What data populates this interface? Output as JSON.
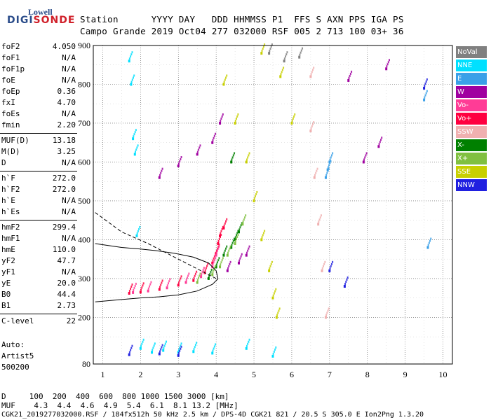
{
  "logo": {
    "top": "Lowell",
    "main_left": "DIGI",
    "main_right": "SONDE"
  },
  "header": {
    "row1": "Station      YYYY DAY   DDD HHMMSS P1  FFS S AXN PPS IGA PS",
    "row2": "Campo Grande 2019 Oct04 277 032000 RSF 005 2 713 100 03+ 36"
  },
  "params_group1": [
    {
      "label": "foF2",
      "value": "4.050"
    },
    {
      "label": "foF1",
      "value": "N/A"
    },
    {
      "label": "foF1p",
      "value": "N/A"
    },
    {
      "label": "foE",
      "value": "N/A"
    },
    {
      "label": "foEp",
      "value": "0.36"
    },
    {
      "label": "fxI",
      "value": "4.70"
    },
    {
      "label": "foEs",
      "value": "N/A"
    },
    {
      "label": "fmin",
      "value": "2.20"
    }
  ],
  "params_group2": [
    {
      "label": "MUF(D)",
      "value": "13.18"
    },
    {
      "label": "M(D)",
      "value": "3.25"
    },
    {
      "label": "D",
      "value": "N/A"
    }
  ],
  "params_group3": [
    {
      "label": "h`F",
      "value": "272.0"
    },
    {
      "label": "h`F2",
      "value": "272.0"
    },
    {
      "label": "h`E",
      "value": "N/A"
    },
    {
      "label": "h`Es",
      "value": "N/A"
    }
  ],
  "params_group4": [
    {
      "label": "hmF2",
      "value": "299.4"
    },
    {
      "label": "hmF1",
      "value": "N/A"
    },
    {
      "label": "hmE",
      "value": "110.0"
    },
    {
      "label": "yF2",
      "value": "47.7"
    },
    {
      "label": "yF1",
      "value": "N/A"
    },
    {
      "label": "yE",
      "value": "20.0"
    },
    {
      "label": "B0",
      "value": "44.4"
    },
    {
      "label": "B1",
      "value": "2.73"
    }
  ],
  "params_group5": [
    {
      "label": "C-level",
      "value": "22"
    }
  ],
  "auto": [
    "Auto:",
    "Artist5",
    "500200"
  ],
  "legend": [
    {
      "label": "NoVal",
      "color": "#808080"
    },
    {
      "label": "NNE",
      "color": "#00e0ff"
    },
    {
      "label": "E",
      "color": "#3aa0e8"
    },
    {
      "label": "W",
      "color": "#a000a0"
    },
    {
      "label": "Vo-",
      "color": "#ff3c96"
    },
    {
      "label": "Vo+",
      "color": "#ff0040"
    },
    {
      "label": "SSW",
      "color": "#f0b0b0"
    },
    {
      "label": "X-",
      "color": "#008000"
    },
    {
      "label": "X+",
      "color": "#80c040"
    },
    {
      "label": "SSE",
      "color": "#c8d000"
    },
    {
      "label": "NNW",
      "color": "#2020e0"
    }
  ],
  "footer": {
    "d_row": "D     100  200  400  600  800 1000 1500 3000 [km]",
    "muf_row": "MUF    4.3  4.4  4.6  4.9  5.4  6.1  8.1 13.2 [MHz]",
    "info": "CGK21_2019277032000.RSF / 184fx512h 50 kHz 2.5 km / DPS-4D CGK21 821 / 20.5 S 305.0 E Ion2Png 1.3.20"
  },
  "chart_data": {
    "type": "scatter",
    "title": "",
    "xlabel": "",
    "ylabel": "",
    "xlim": [
      0.75,
      10.25
    ],
    "ylim": [
      80,
      900
    ],
    "x_ticks": [
      1,
      2,
      3,
      4,
      5,
      6,
      7,
      8,
      9,
      10
    ],
    "y_ticks": [
      80,
      200,
      300,
      400,
      500,
      600,
      700,
      800,
      900
    ],
    "grid": true,
    "series": [
      {
        "name": "Vo+",
        "color": "#ff0040",
        "x": [
          1.7,
          2.0,
          2.5,
          3.0,
          3.4,
          3.7,
          3.9,
          4.0,
          4.05,
          4.1,
          4.2
        ],
        "y": [
          262,
          265,
          272,
          283,
          295,
          315,
          340,
          365,
          390,
          410,
          430
        ]
      },
      {
        "name": "Vo-",
        "color": "#ff3c96",
        "x": [
          1.8,
          2.2,
          2.7,
          3.2,
          3.6,
          3.9,
          4.0
        ],
        "y": [
          264,
          268,
          276,
          290,
          305,
          330,
          360
        ]
      },
      {
        "name": "W",
        "color": "#a000a0",
        "x": [
          2.5,
          3.0,
          3.5,
          3.9,
          4.1,
          4.3,
          4.6,
          4.8,
          7.9,
          8.3,
          8.5,
          7.5
        ],
        "y": [
          560,
          590,
          620,
          650,
          700,
          320,
          340,
          360,
          600,
          640,
          840,
          810
        ]
      },
      {
        "name": "X-",
        "color": "#008000",
        "x": [
          3.8,
          4.0,
          4.2,
          4.4,
          4.5,
          4.6,
          4.4
        ],
        "y": [
          300,
          330,
          360,
          380,
          400,
          420,
          600
        ]
      },
      {
        "name": "X+",
        "color": "#80c040",
        "x": [
          3.5,
          3.9,
          4.1,
          4.3,
          4.5,
          4.7
        ],
        "y": [
          290,
          310,
          330,
          360,
          390,
          440
        ]
      },
      {
        "name": "NNE",
        "color": "#00e0ff",
        "x": [
          1.7,
          1.75,
          1.8,
          1.85,
          1.9,
          2.0,
          2.3,
          2.6,
          3.0,
          3.4,
          3.9,
          4.8,
          5.5
        ],
        "y": [
          860,
          800,
          660,
          620,
          410,
          120,
          110,
          115,
          110,
          112,
          108,
          120,
          100
        ]
      },
      {
        "name": "E",
        "color": "#3aa0e8",
        "x": [
          6.9,
          6.95,
          7.0,
          9.5,
          9.6
        ],
        "y": [
          560,
          580,
          600,
          760,
          380
        ]
      },
      {
        "name": "SSW",
        "color": "#f0b0b0",
        "x": [
          6.5,
          6.6,
          6.7,
          6.8,
          6.9,
          6.5
        ],
        "y": [
          680,
          560,
          440,
          320,
          200,
          820
        ]
      },
      {
        "name": "SSE",
        "color": "#c8d000",
        "x": [
          4.2,
          4.5,
          4.8,
          5.0,
          5.2,
          5.4,
          5.5,
          5.6,
          5.2,
          5.7,
          6.0
        ],
        "y": [
          800,
          700,
          600,
          500,
          400,
          320,
          250,
          200,
          880,
          820,
          700
        ]
      },
      {
        "name": "NNW",
        "color": "#2020e0",
        "x": [
          1.7,
          2.5,
          3.0,
          7.0,
          7.4,
          9.5
        ],
        "y": [
          104,
          106,
          102,
          320,
          280,
          790
        ]
      },
      {
        "name": "NoVal",
        "color": "#808080",
        "x": [
          5.4,
          5.8,
          6.2
        ],
        "y": [
          880,
          860,
          870
        ]
      }
    ],
    "profile_solid": {
      "x": [
        4.05,
        4.0,
        3.8,
        3.4,
        2.9,
        2.4,
        2.0,
        1.5,
        0.8
      ],
      "y": [
        299.4,
        320,
        340,
        355,
        365,
        372,
        376,
        380,
        390
      ]
    },
    "profile_solid2": {
      "x": [
        4.05,
        3.9,
        3.5,
        3.0,
        2.5,
        2.0,
        1.5,
        0.8
      ],
      "y": [
        299.4,
        285,
        268,
        258,
        253,
        250,
        246,
        240
      ]
    },
    "profile_dashed": {
      "x": [
        0.8,
        1.5,
        2.2,
        3.0,
        3.6,
        4.0
      ],
      "y": [
        470,
        420,
        390,
        350,
        320,
        300
      ]
    }
  }
}
